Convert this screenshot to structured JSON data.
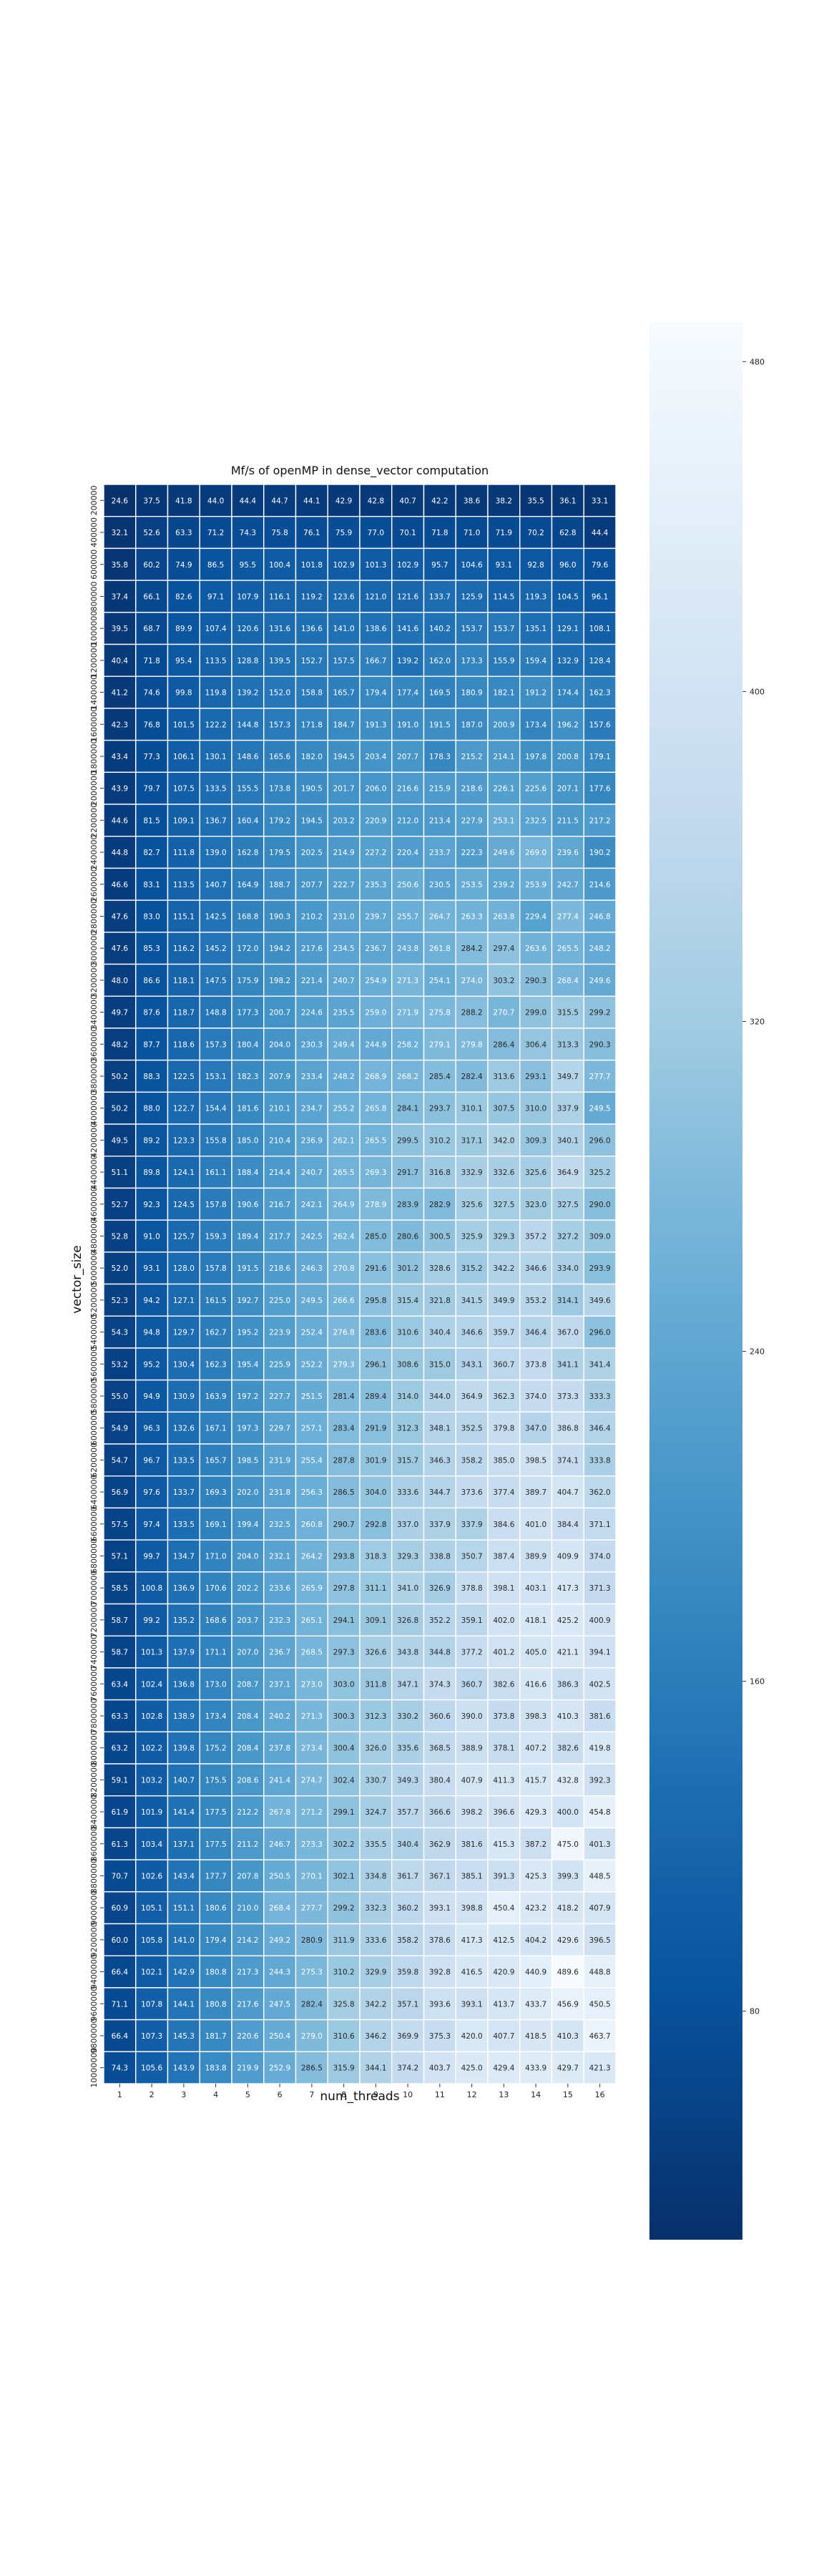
{
  "chart_data": {
    "type": "heatmap",
    "title": "Mf/s of openMP in dense_vector computation",
    "xlabel": "num_threads",
    "ylabel": "vector_size",
    "x": [
      1,
      2,
      3,
      4,
      5,
      6,
      7,
      8,
      9,
      10,
      11,
      12,
      13,
      14,
      15,
      16
    ],
    "y": [
      "200000",
      "400000",
      "600000",
      "800000",
      "1000000",
      "1200000",
      "1400000",
      "1600000",
      "1800000",
      "2000000",
      "2200000",
      "2400000",
      "2600000",
      "2800000",
      "3000000",
      "3200000",
      "3400000",
      "3600000",
      "3800000",
      "4000000",
      "4200000",
      "4400000",
      "4600000",
      "4800000",
      "5000000",
      "5200000",
      "5400000",
      "5600000",
      "5800000",
      "6000000",
      "6200000",
      "6400000",
      "6600000",
      "6800000",
      "7000000",
      "7200000",
      "7400000",
      "7600000",
      "7800000",
      "8000000",
      "8200000",
      "8400000",
      "8600000",
      "8800000",
      "9000000",
      "9200000",
      "9400000",
      "9600000",
      "9800000",
      "10000000"
    ],
    "values": [
      [
        24.6,
        37.5,
        41.8,
        44.0,
        44.4,
        44.7,
        44.1,
        42.9,
        42.8,
        40.7,
        42.2,
        38.6,
        38.2,
        35.5,
        36.1,
        33.1
      ],
      [
        32.1,
        52.6,
        63.3,
        71.2,
        74.3,
        75.8,
        76.1,
        75.9,
        77.0,
        70.1,
        71.8,
        71.0,
        71.9,
        70.2,
        62.8,
        44.4
      ],
      [
        35.8,
        60.2,
        74.9,
        86.5,
        95.5,
        100.4,
        101.8,
        102.9,
        101.3,
        102.9,
        95.7,
        104.6,
        93.1,
        92.8,
        96.0,
        79.6
      ],
      [
        37.4,
        66.1,
        82.6,
        97.1,
        107.9,
        116.1,
        119.2,
        123.6,
        121.0,
        121.6,
        133.7,
        125.9,
        114.5,
        119.3,
        104.5,
        96.1
      ],
      [
        39.5,
        68.7,
        89.9,
        107.4,
        120.6,
        131.6,
        136.6,
        141.0,
        138.6,
        141.6,
        140.2,
        153.7,
        153.7,
        135.1,
        129.1,
        108.1
      ],
      [
        40.4,
        71.8,
        95.4,
        113.5,
        128.8,
        139.5,
        152.7,
        157.5,
        166.7,
        139.2,
        162.0,
        173.3,
        155.9,
        159.4,
        132.9,
        128.4
      ],
      [
        41.2,
        74.6,
        99.8,
        119.8,
        139.2,
        152.0,
        158.8,
        165.7,
        179.4,
        177.4,
        169.5,
        180.9,
        182.1,
        191.2,
        174.4,
        162.3
      ],
      [
        42.3,
        76.8,
        101.5,
        122.2,
        144.8,
        157.3,
        171.8,
        184.7,
        191.3,
        191.0,
        191.5,
        187.0,
        200.9,
        173.4,
        196.2,
        157.6
      ],
      [
        43.4,
        77.3,
        106.1,
        130.1,
        148.6,
        165.6,
        182.0,
        194.5,
        203.4,
        207.7,
        178.3,
        215.2,
        214.1,
        197.8,
        200.8,
        179.1
      ],
      [
        43.9,
        79.7,
        107.5,
        133.5,
        155.5,
        173.8,
        190.5,
        201.7,
        206.0,
        216.6,
        215.9,
        218.6,
        226.1,
        225.6,
        207.1,
        177.6
      ],
      [
        44.6,
        81.5,
        109.1,
        136.7,
        160.4,
        179.2,
        194.5,
        203.2,
        220.9,
        212.0,
        213.4,
        227.9,
        253.1,
        232.5,
        211.5,
        217.2
      ],
      [
        44.8,
        82.7,
        111.8,
        139.0,
        162.8,
        179.5,
        202.5,
        214.9,
        227.2,
        220.4,
        233.7,
        222.3,
        249.6,
        269.0,
        239.6,
        190.2
      ],
      [
        46.6,
        83.1,
        113.5,
        140.7,
        164.9,
        188.7,
        207.7,
        222.7,
        235.3,
        250.6,
        230.5,
        253.5,
        239.2,
        253.9,
        242.7,
        214.6
      ],
      [
        47.6,
        83.0,
        115.1,
        142.5,
        168.8,
        190.3,
        210.2,
        231.0,
        239.7,
        255.7,
        264.7,
        263.3,
        263.8,
        229.4,
        277.4,
        246.8
      ],
      [
        47.6,
        85.3,
        116.2,
        145.2,
        172.0,
        194.2,
        217.6,
        234.5,
        236.7,
        243.8,
        261.8,
        284.2,
        297.4,
        263.6,
        265.5,
        248.2
      ],
      [
        48.0,
        86.6,
        118.1,
        147.5,
        175.9,
        198.2,
        221.4,
        240.7,
        254.9,
        271.3,
        254.1,
        274.0,
        303.2,
        290.3,
        268.4,
        249.6
      ],
      [
        49.7,
        87.6,
        118.7,
        148.8,
        177.3,
        200.7,
        224.6,
        235.5,
        259.0,
        271.9,
        275.8,
        288.2,
        270.7,
        299.0,
        315.5,
        299.2
      ],
      [
        48.2,
        87.7,
        118.6,
        157.3,
        180.4,
        204.0,
        230.3,
        249.4,
        244.9,
        258.2,
        279.1,
        279.8,
        286.4,
        306.4,
        313.3,
        290.3
      ],
      [
        50.2,
        88.3,
        122.5,
        153.1,
        182.3,
        207.9,
        233.4,
        248.2,
        268.9,
        268.2,
        285.4,
        282.4,
        313.6,
        293.1,
        349.7,
        277.7
      ],
      [
        50.2,
        88.0,
        122.7,
        154.4,
        181.6,
        210.1,
        234.7,
        255.2,
        265.8,
        284.1,
        293.7,
        310.1,
        307.5,
        310.0,
        337.9,
        249.5
      ],
      [
        49.5,
        89.2,
        123.3,
        155.8,
        185.0,
        210.4,
        236.9,
        262.1,
        265.5,
        299.5,
        310.2,
        317.1,
        342.0,
        309.3,
        340.1,
        296.0
      ],
      [
        51.1,
        89.8,
        124.1,
        161.1,
        188.4,
        214.4,
        240.7,
        265.5,
        269.3,
        291.7,
        316.8,
        332.9,
        332.6,
        325.6,
        364.9,
        325.2
      ],
      [
        52.7,
        92.3,
        124.5,
        157.8,
        190.6,
        216.7,
        242.1,
        264.9,
        278.9,
        283.9,
        282.9,
        325.6,
        327.5,
        323.0,
        327.5,
        290.0
      ],
      [
        52.8,
        91.0,
        125.7,
        159.3,
        189.4,
        217.7,
        242.5,
        262.4,
        285.0,
        280.6,
        300.5,
        325.9,
        329.3,
        357.2,
        327.2,
        309.0
      ],
      [
        52.0,
        93.1,
        128.0,
        157.8,
        191.5,
        218.6,
        246.3,
        270.8,
        291.6,
        301.2,
        328.6,
        315.2,
        342.2,
        346.6,
        334.0,
        293.9
      ],
      [
        52.3,
        94.2,
        127.1,
        161.5,
        192.7,
        225.0,
        249.5,
        266.6,
        295.8,
        315.4,
        321.8,
        341.5,
        349.9,
        353.2,
        314.1,
        349.6
      ],
      [
        54.3,
        94.8,
        129.7,
        162.7,
        195.2,
        223.9,
        252.4,
        276.8,
        283.6,
        310.6,
        340.4,
        346.6,
        359.7,
        346.4,
        367.0,
        296.0
      ],
      [
        53.2,
        95.2,
        130.4,
        162.3,
        195.4,
        225.9,
        252.2,
        279.3,
        296.1,
        308.6,
        315.0,
        343.1,
        360.7,
        373.8,
        341.1,
        341.4
      ],
      [
        55.0,
        94.9,
        130.9,
        163.9,
        197.2,
        227.7,
        251.5,
        281.4,
        289.4,
        314.0,
        344.0,
        364.9,
        362.3,
        374.0,
        373.3,
        333.3
      ],
      [
        54.9,
        96.3,
        132.6,
        167.1,
        197.3,
        229.7,
        257.1,
        283.4,
        291.9,
        312.3,
        348.1,
        352.5,
        379.8,
        347.0,
        386.8,
        346.4
      ],
      [
        54.7,
        96.7,
        133.5,
        165.7,
        198.5,
        231.9,
        255.4,
        287.8,
        301.9,
        315.7,
        346.3,
        358.2,
        385.0,
        398.5,
        374.1,
        333.8
      ],
      [
        56.9,
        97.6,
        133.7,
        169.3,
        202.0,
        231.8,
        256.3,
        286.5,
        304.0,
        333.6,
        344.7,
        373.6,
        377.4,
        389.7,
        404.7,
        362.0
      ],
      [
        57.5,
        97.4,
        133.5,
        169.1,
        199.4,
        232.5,
        260.8,
        290.7,
        292.8,
        337.0,
        337.9,
        337.9,
        384.6,
        401.0,
        384.4,
        371.1
      ],
      [
        57.1,
        99.7,
        134.7,
        171.0,
        204.0,
        232.1,
        264.2,
        293.8,
        318.3,
        329.3,
        338.8,
        350.7,
        387.4,
        389.9,
        409.9,
        374.0
      ],
      [
        58.5,
        100.8,
        136.9,
        170.6,
        202.2,
        233.6,
        265.9,
        297.8,
        311.1,
        341.0,
        326.9,
        378.8,
        398.1,
        403.1,
        417.3,
        371.3
      ],
      [
        58.7,
        99.2,
        135.2,
        168.6,
        203.7,
        232.3,
        265.1,
        294.1,
        309.1,
        326.8,
        352.2,
        359.1,
        402.0,
        418.1,
        425.2,
        400.9
      ],
      [
        58.7,
        101.3,
        137.9,
        171.1,
        207.0,
        236.7,
        268.5,
        297.3,
        326.6,
        343.8,
        344.8,
        377.2,
        401.2,
        405.0,
        421.1,
        394.1
      ],
      [
        63.4,
        102.4,
        136.8,
        173.0,
        208.7,
        237.1,
        273.0,
        303.0,
        311.8,
        347.1,
        374.3,
        360.7,
        382.6,
        416.6,
        386.3,
        402.5
      ],
      [
        63.3,
        102.8,
        138.9,
        173.4,
        208.4,
        240.2,
        271.3,
        300.3,
        312.3,
        330.2,
        360.6,
        390.0,
        373.8,
        398.3,
        410.3,
        381.6
      ],
      [
        63.2,
        102.2,
        139.8,
        175.2,
        208.4,
        237.8,
        273.4,
        300.4,
        326.0,
        335.6,
        368.5,
        388.9,
        378.1,
        407.2,
        382.6,
        419.8
      ],
      [
        59.1,
        103.2,
        140.7,
        175.5,
        208.6,
        241.4,
        274.7,
        302.4,
        330.7,
        349.3,
        380.4,
        407.9,
        411.3,
        415.7,
        432.8,
        392.3
      ],
      [
        61.9,
        101.9,
        141.4,
        177.5,
        212.2,
        267.8,
        271.2,
        299.1,
        324.7,
        357.7,
        366.6,
        398.2,
        396.6,
        429.3,
        400.0,
        454.8
      ],
      [
        61.3,
        103.4,
        137.1,
        177.5,
        211.2,
        246.7,
        273.3,
        302.2,
        335.5,
        340.4,
        362.9,
        381.6,
        415.3,
        387.2,
        475.0,
        401.3
      ],
      [
        70.7,
        102.6,
        143.4,
        177.7,
        207.8,
        250.5,
        270.1,
        302.1,
        334.8,
        361.7,
        367.1,
        385.1,
        391.3,
        425.3,
        399.3,
        448.5
      ],
      [
        60.9,
        105.1,
        151.1,
        180.6,
        210.0,
        268.4,
        277.7,
        299.2,
        332.3,
        360.2,
        393.1,
        398.8,
        450.4,
        423.2,
        418.2,
        407.9
      ],
      [
        60.0,
        105.8,
        141.0,
        179.4,
        214.2,
        249.2,
        280.9,
        311.9,
        333.6,
        358.2,
        378.6,
        417.3,
        412.5,
        404.2,
        429.6,
        396.5
      ],
      [
        66.4,
        102.1,
        142.9,
        180.8,
        217.3,
        244.3,
        275.3,
        310.2,
        329.9,
        359.8,
        392.8,
        416.5,
        420.9,
        440.9,
        489.6,
        448.8
      ],
      [
        71.1,
        107.8,
        144.1,
        180.8,
        217.6,
        247.5,
        282.4,
        325.8,
        342.2,
        357.1,
        393.6,
        393.1,
        413.7,
        433.7,
        456.9,
        450.5
      ],
      [
        66.4,
        107.3,
        145.3,
        181.7,
        220.6,
        250.4,
        279.0,
        310.6,
        346.2,
        369.9,
        375.3,
        420.0,
        407.7,
        418.5,
        410.3,
        463.7
      ],
      [
        74.3,
        105.6,
        143.9,
        183.8,
        219.9,
        252.9,
        286.5,
        315.9,
        344.1,
        374.2,
        403.7,
        425.0,
        429.4,
        433.9,
        429.7,
        421.3
      ]
    ],
    "vmin": 24.6,
    "vmax": 489.6,
    "colormap": "Blues_r",
    "colorbar_ticks": [
      80,
      160,
      240,
      320,
      400,
      480
    ],
    "grid": true,
    "legend": "colorbar-right"
  }
}
